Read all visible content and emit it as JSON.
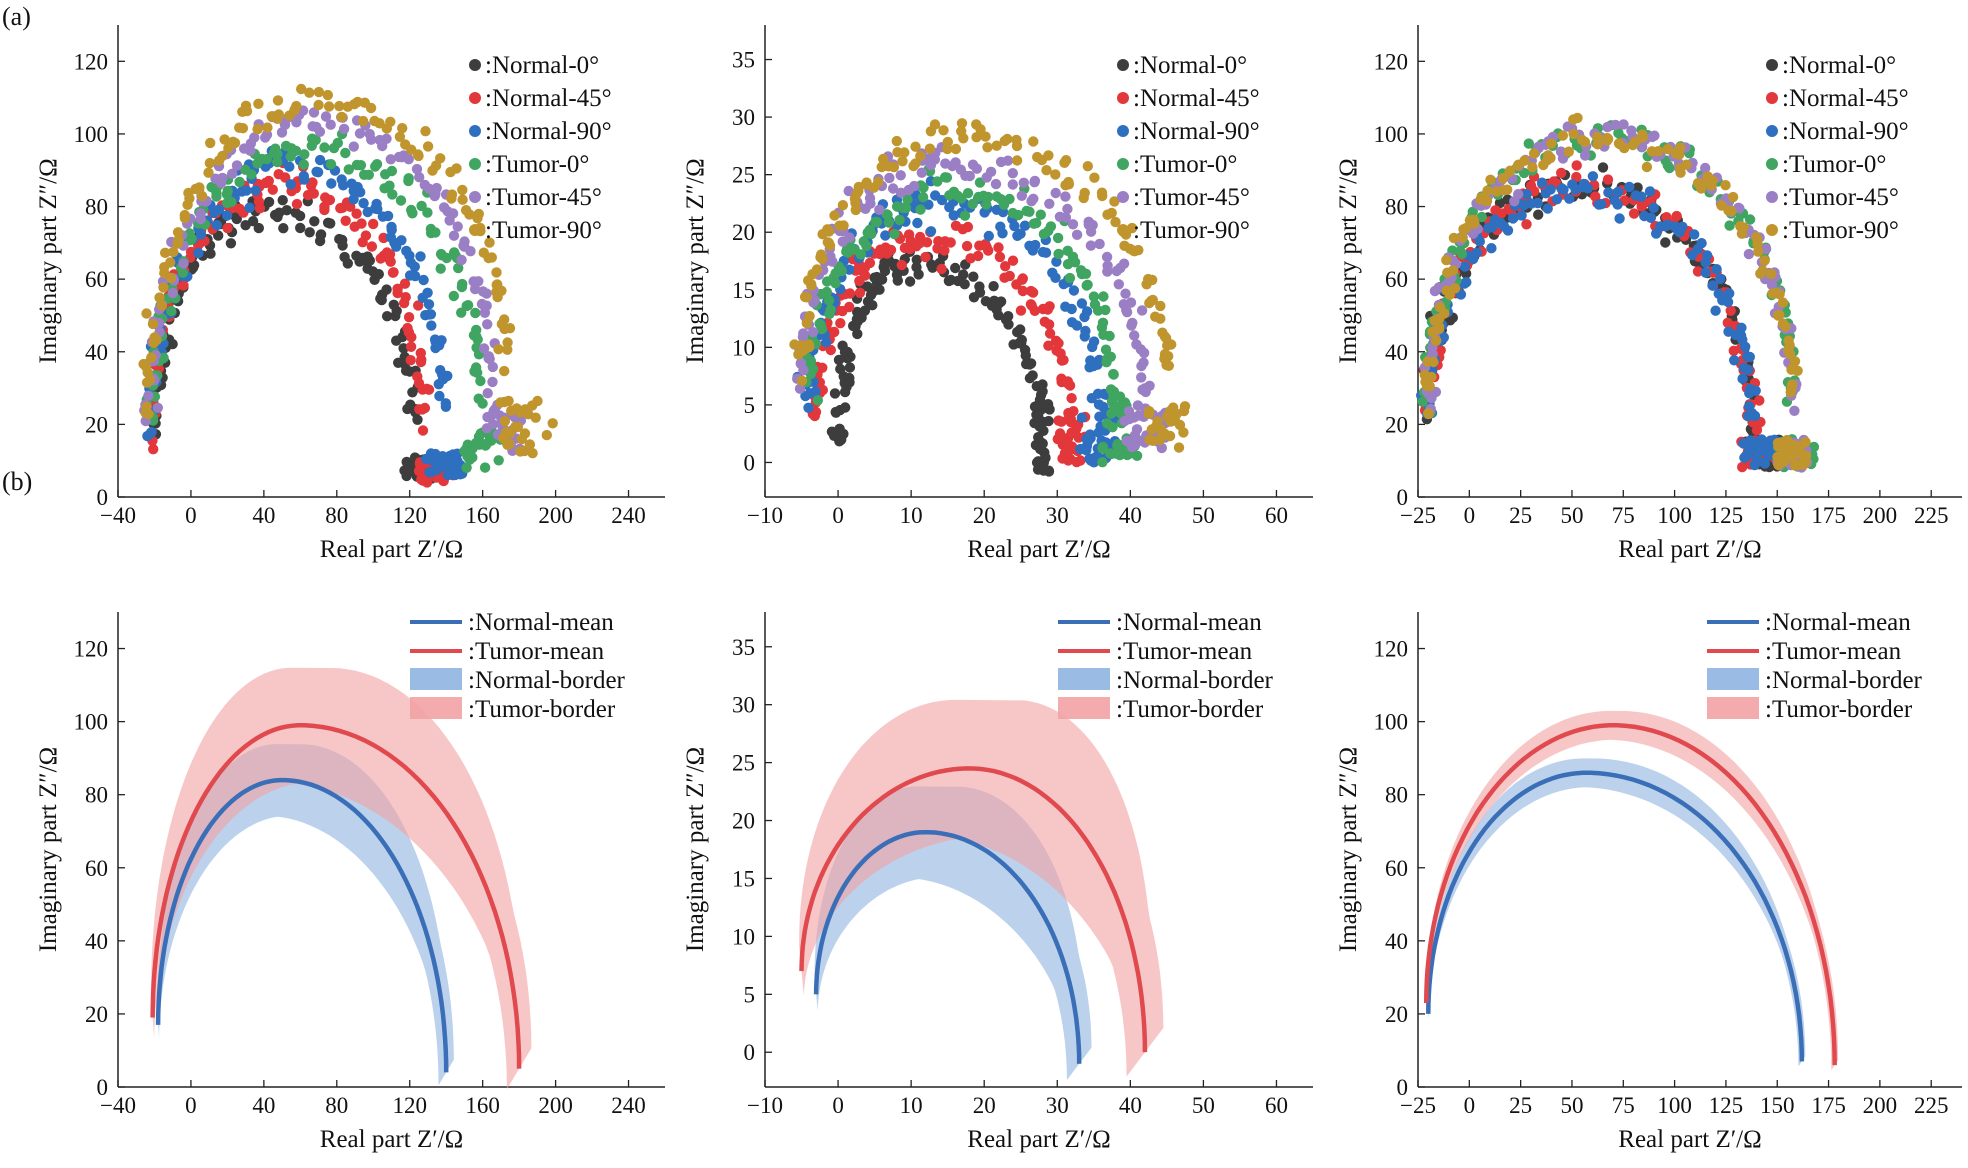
{
  "figure": {
    "panel_a_label": "(a)",
    "panel_b_label": "(b)"
  },
  "colors": {
    "normal_0": "#3d3d3d",
    "normal_45": "#e2373b",
    "normal_90": "#2e6fbf",
    "tumor_0": "#3fa561",
    "tumor_45": "#9b7fc5",
    "tumor_90": "#c0952e",
    "normal_mean": "#3a6fb8",
    "tumor_mean": "#e04a4e",
    "normal_border": "#8fb4e0",
    "tumor_border": "#f2a2a4"
  },
  "chart_data": [
    {
      "id": "a1",
      "type": "scatter",
      "xlabel": "Real part Z′/Ω",
      "ylabel": "Imaginary part Z″/Ω",
      "xlim": [
        -40,
        260
      ],
      "ylim": [
        0,
        130
      ],
      "xticks": [
        -40,
        0,
        40,
        80,
        120,
        160,
        200,
        240
      ],
      "yticks": [
        0,
        20,
        40,
        60,
        80,
        100,
        120
      ],
      "legend_position": "top-right",
      "series": [
        {
          "name": ":Normal-0°",
          "color_key": "normal_0",
          "arc": {
            "x_start": -20,
            "y_start": 15,
            "x_apex": 38,
            "y_apex": 78,
            "x_end": 122,
            "y_end": 22
          },
          "tail": {
            "x_range": [
              117,
              135
            ],
            "y_range": [
              5,
              11
            ]
          }
        },
        {
          "name": ":Normal-45°",
          "color_key": "normal_45",
          "arc": {
            "x_start": -22,
            "y_start": 16,
            "x_apex": 48,
            "y_apex": 86,
            "x_end": 128,
            "y_end": 22
          },
          "tail": {
            "x_range": [
              125,
              145
            ],
            "y_range": [
              4,
              10
            ]
          }
        },
        {
          "name": ":Normal-90°",
          "color_key": "normal_90",
          "arc": {
            "x_start": -22,
            "y_start": 17,
            "x_apex": 55,
            "y_apex": 91,
            "x_end": 138,
            "y_end": 24
          },
          "tail": {
            "x_range": [
              128,
              150
            ],
            "y_range": [
              6,
              12
            ]
          }
        },
        {
          "name": ":Tumor-0°",
          "color_key": "tumor_0",
          "arc": {
            "x_start": -22,
            "y_start": 18,
            "x_apex": 65,
            "y_apex": 96,
            "x_end": 158,
            "y_end": 28
          },
          "tail": {
            "x_range": [
              150,
              170
            ],
            "y_range": [
              8,
              18
            ]
          }
        },
        {
          "name": ":Tumor-45°",
          "color_key": "tumor_45",
          "arc": {
            "x_start": -24,
            "y_start": 18,
            "x_apex": 66,
            "y_apex": 103,
            "x_end": 165,
            "y_end": 32
          },
          "tail": {
            "x_range": [
              162,
              182
            ],
            "y_range": [
              12,
              26
            ]
          }
        },
        {
          "name": ":Tumor-90°",
          "color_key": "tumor_90",
          "arc": {
            "x_start": -24,
            "y_start": 20,
            "x_apex": 60,
            "y_apex": 109,
            "x_end": 172,
            "y_end": 38
          },
          "tail": {
            "x_range": [
              168,
              200
            ],
            "y_range": [
              12,
              27
            ]
          }
        }
      ]
    },
    {
      "id": "a2",
      "type": "scatter",
      "xlabel": "Real part Z′/Ω",
      "ylabel": "Imaginary part Z″/Ω",
      "xlim": [
        -10,
        65
      ],
      "ylim": [
        -3,
        38
      ],
      "xticks": [
        -10,
        0,
        10,
        20,
        30,
        40,
        50,
        60
      ],
      "yticks": [
        0,
        5,
        10,
        15,
        20,
        25,
        30,
        35
      ],
      "legend_position": "top-right",
      "series": [
        {
          "name": ":Normal-0°",
          "color_key": "normal_0",
          "arc": {
            "x_start": 0,
            "y_start": 1.5,
            "x_apex": 9,
            "y_apex": 17,
            "x_end": 28,
            "y_end": 3
          },
          "tail": {
            "x_range": [
              27,
              29
            ],
            "y_range": [
              -1,
              5
            ]
          }
        },
        {
          "name": ":Normal-45°",
          "color_key": "normal_45",
          "arc": {
            "x_start": -3,
            "y_start": 4,
            "x_apex": 12,
            "y_apex": 19.5,
            "x_end": 32,
            "y_end": 3
          },
          "tail": {
            "x_range": [
              30,
              34
            ],
            "y_range": [
              0,
              4
            ]
          }
        },
        {
          "name": ":Normal-90°",
          "color_key": "normal_90",
          "arc": {
            "x_start": -4,
            "y_start": 5,
            "x_apex": 14,
            "y_apex": 22.5,
            "x_end": 36,
            "y_end": 3
          },
          "tail": {
            "x_range": [
              33,
              38
            ],
            "y_range": [
              0,
              4
            ]
          }
        },
        {
          "name": ":Tumor-0°",
          "color_key": "tumor_0",
          "arc": {
            "x_start": -4,
            "y_start": 6,
            "x_apex": 16,
            "y_apex": 23.5,
            "x_end": 38,
            "y_end": 4
          },
          "tail": {
            "x_range": [
              36,
              41
            ],
            "y_range": [
              0,
              5
            ]
          }
        },
        {
          "name": ":Tumor-45°",
          "color_key": "tumor_45",
          "arc": {
            "x_start": -5,
            "y_start": 7,
            "x_apex": 15,
            "y_apex": 26,
            "x_end": 42,
            "y_end": 6
          },
          "tail": {
            "x_range": [
              39,
              45
            ],
            "y_range": [
              1,
              5
            ]
          }
        },
        {
          "name": ":Tumor-90°",
          "color_key": "tumor_90",
          "arc": {
            "x_start": -5,
            "y_start": 9,
            "x_apex": 17,
            "y_apex": 28,
            "x_end": 45,
            "y_end": 7
          },
          "tail": {
            "x_range": [
              42,
              48
            ],
            "y_range": [
              1,
              5
            ]
          }
        }
      ]
    },
    {
      "id": "a3",
      "type": "scatter",
      "xlabel": "Real part Z′/Ω",
      "ylabel": "Imaginary part Z″/Ω",
      "xlim": [
        -25,
        240
      ],
      "ylim": [
        0,
        130
      ],
      "xticks": [
        -25,
        0,
        25,
        50,
        75,
        100,
        125,
        150,
        175,
        200,
        225
      ],
      "yticks": [
        0,
        20,
        40,
        60,
        80,
        100,
        120
      ],
      "legend_position": "top-right",
      "series": [
        {
          "name": ":Normal-0°",
          "color_key": "normal_0",
          "arc": {
            "x_start": -20,
            "y_start": 22,
            "x_apex": 52,
            "y_apex": 86,
            "x_end": 138,
            "y_end": 18
          },
          "tail": {
            "x_range": [
              132,
              155
            ],
            "y_range": [
              8,
              16
            ]
          }
        },
        {
          "name": ":Normal-45°",
          "color_key": "normal_45",
          "arc": {
            "x_start": -20,
            "y_start": 22,
            "x_apex": 52,
            "y_apex": 86,
            "x_end": 138,
            "y_end": 18
          },
          "tail": {
            "x_range": [
              132,
              155
            ],
            "y_range": [
              8,
              16
            ]
          }
        },
        {
          "name": ":Normal-90°",
          "color_key": "normal_90",
          "arc": {
            "x_start": -20,
            "y_start": 22,
            "x_apex": 55,
            "y_apex": 85,
            "x_end": 138,
            "y_end": 18
          },
          "tail": {
            "x_range": [
              132,
              155
            ],
            "y_range": [
              8,
              16
            ]
          }
        },
        {
          "name": ":Tumor-0°",
          "color_key": "tumor_0",
          "arc": {
            "x_start": -21,
            "y_start": 24,
            "x_apex": 64,
            "y_apex": 99,
            "x_end": 158,
            "y_end": 26
          },
          "tail": {
            "x_range": [
              150,
              168
            ],
            "y_range": [
              8,
              16
            ]
          }
        },
        {
          "name": ":Tumor-45°",
          "color_key": "tumor_45",
          "arc": {
            "x_start": -21,
            "y_start": 24,
            "x_apex": 64,
            "y_apex": 100,
            "x_end": 158,
            "y_end": 26
          },
          "tail": {
            "x_range": [
              150,
              165
            ],
            "y_range": [
              8,
              16
            ]
          }
        },
        {
          "name": ":Tumor-90°",
          "color_key": "tumor_90",
          "arc": {
            "x_start": -21,
            "y_start": 24,
            "x_apex": 64,
            "y_apex": 99,
            "x_end": 158,
            "y_end": 26
          },
          "tail": {
            "x_range": [
              150,
              165
            ],
            "y_range": [
              8,
              16
            ]
          }
        }
      ]
    },
    {
      "id": "b1",
      "type": "line",
      "xlabel": "Real part Z′/Ω",
      "ylabel": "Imaginary part Z″/Ω",
      "xlim": [
        -40,
        260
      ],
      "ylim": [
        0,
        130
      ],
      "xticks": [
        -40,
        0,
        40,
        80,
        120,
        160,
        200,
        240
      ],
      "yticks": [
        0,
        20,
        40,
        60,
        80,
        100,
        120
      ],
      "legend_position": "top-right",
      "legend": [
        ":Normal-mean",
        ":Tumor-mean",
        ":Normal-border",
        ":Tumor-border"
      ],
      "series": [
        {
          "name": ":Normal-mean",
          "color_key": "normal_mean",
          "arc": {
            "x_start": -18,
            "y_start": 17,
            "x_apex": 50,
            "y_apex": 84,
            "x_end": 140,
            "y_end": 4
          },
          "band": 10
        },
        {
          "name": ":Tumor-mean",
          "color_key": "tumor_mean",
          "arc": {
            "x_start": -21,
            "y_start": 19,
            "x_apex": 60,
            "y_apex": 99,
            "x_end": 180,
            "y_end": 5
          },
          "band": 16
        }
      ]
    },
    {
      "id": "b2",
      "type": "line",
      "xlabel": "Real part Z′/Ω",
      "ylabel": "Imaginary part Z″/Ω",
      "xlim": [
        -10,
        65
      ],
      "ylim": [
        -3,
        38
      ],
      "xticks": [
        -10,
        0,
        10,
        20,
        30,
        40,
        50,
        60
      ],
      "yticks": [
        0,
        5,
        10,
        15,
        20,
        25,
        30,
        35
      ],
      "legend_position": "top-right",
      "legend": [
        ":Normal-mean",
        ":Tumor-mean",
        ":Normal-border",
        ":Tumor-border"
      ],
      "series": [
        {
          "name": ":Normal-mean",
          "color_key": "normal_mean",
          "arc": {
            "x_start": -3,
            "y_start": 5,
            "x_apex": 12,
            "y_apex": 19,
            "x_end": 33,
            "y_end": -1
          },
          "band": 4
        },
        {
          "name": ":Tumor-mean",
          "color_key": "tumor_mean",
          "arc": {
            "x_start": -5,
            "y_start": 7,
            "x_apex": 18,
            "y_apex": 24.5,
            "x_end": 42,
            "y_end": 0
          },
          "band": 6
        }
      ]
    },
    {
      "id": "b3",
      "type": "line",
      "xlabel": "Real part Z′/Ω",
      "ylabel": "Imaginary part Z″/Ω",
      "xlim": [
        -25,
        240
      ],
      "ylim": [
        0,
        130
      ],
      "xticks": [
        -25,
        0,
        25,
        50,
        75,
        100,
        125,
        150,
        175,
        200,
        225
      ],
      "yticks": [
        0,
        20,
        40,
        60,
        80,
        100,
        120
      ],
      "legend_position": "top-right",
      "legend": [
        ":Normal-mean",
        ":Tumor-mean",
        ":Normal-border",
        ":Tumor-border"
      ],
      "series": [
        {
          "name": ":Normal-mean",
          "color_key": "normal_mean",
          "arc": {
            "x_start": -20,
            "y_start": 20,
            "x_apex": 57,
            "y_apex": 86,
            "x_end": 162,
            "y_end": 7
          },
          "band": 4
        },
        {
          "name": ":Tumor-mean",
          "color_key": "tumor_mean",
          "arc": {
            "x_start": -21,
            "y_start": 23,
            "x_apex": 70,
            "y_apex": 99,
            "x_end": 178,
            "y_end": 6
          },
          "band": 4
        }
      ]
    }
  ]
}
